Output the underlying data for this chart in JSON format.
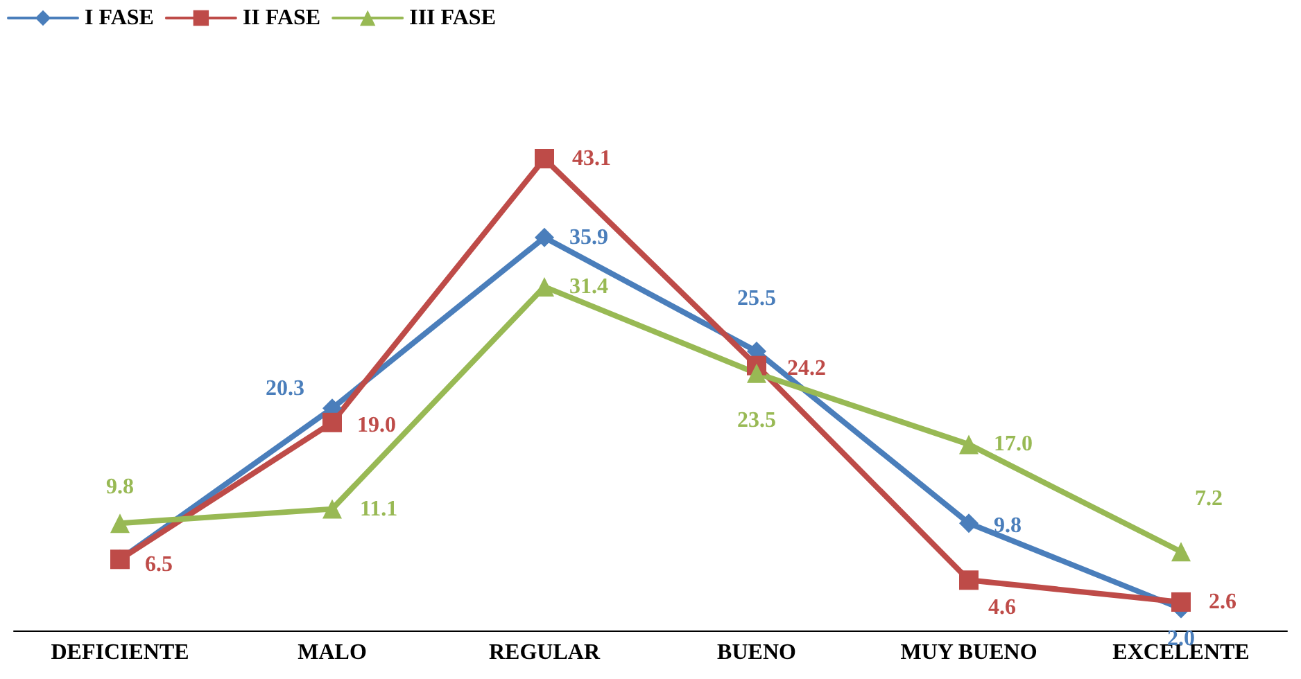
{
  "chart_data": {
    "type": "line",
    "categories": [
      "DEFICIENTE",
      "MALO",
      "REGULAR",
      "BUENO",
      "MUY BUENO",
      "EXCELENTE"
    ],
    "series": [
      {
        "name": "I FASE",
        "color": "#4a7ebb",
        "marker": "diamond",
        "values": [
          6.5,
          20.3,
          35.9,
          25.5,
          9.8,
          2.0
        ],
        "value_labels": [
          null,
          "20.3",
          "35.9",
          "25.5",
          "9.8",
          "2.0"
        ]
      },
      {
        "name": "II FASE",
        "color": "#be4b48",
        "marker": "square",
        "values": [
          6.5,
          19.0,
          43.1,
          24.2,
          4.6,
          2.6
        ],
        "value_labels": [
          "6.5",
          "19.0",
          "43.1",
          "24.2",
          "4.6",
          "2.6"
        ]
      },
      {
        "name": "III FASE",
        "color": "#98b954",
        "marker": "triangle",
        "values": [
          9.8,
          11.1,
          31.4,
          23.5,
          17.0,
          7.2
        ],
        "value_labels": [
          "9.8",
          "11.1",
          "31.4",
          "23.5",
          "17.0",
          "7.2"
        ]
      }
    ],
    "legend": "top left",
    "grid": false
  }
}
